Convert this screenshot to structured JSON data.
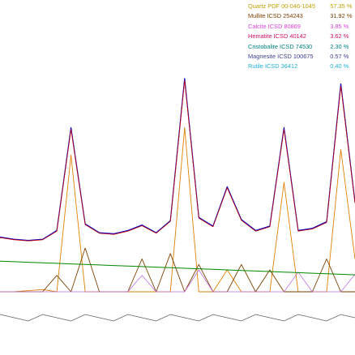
{
  "chart_data": {
    "type": "line",
    "title": "",
    "xlabel": "",
    "ylabel": "",
    "grid": false,
    "legend_placement": "top-right",
    "phases": [
      {
        "name": "Quartz PDF 00-046-1045",
        "percent": "57.35 %",
        "color": "#c0a000"
      },
      {
        "name": "Mullite ICSD 254243",
        "percent": "31.92 %",
        "color": "#7b3f00"
      },
      {
        "name": "Calcite ICSD 80869",
        "percent": "3.85 %",
        "color": "#e040e0"
      },
      {
        "name": "Hematite ICSD 40142",
        "percent": "3.62 %",
        "color": "#d01060"
      },
      {
        "name": "Cristobalite ICSD 74530",
        "percent": "2.30 %",
        "color": "#008080"
      },
      {
        "name": "Magnesite ICSD 100675",
        "percent": "0.57 %",
        "color": "#404090"
      },
      {
        "name": "Rutile ICSD 36412",
        "percent": "0.40 %",
        "color": "#20b0d0"
      }
    ],
    "colors": {
      "observed": "#0000cc",
      "calculated": "#cc0000",
      "background": "#008800",
      "difference": "#606060",
      "quartz": "#e08000",
      "mullite": "#7b3f00",
      "minor_phase": "#c070e0"
    },
    "x": [
      0,
      2,
      4,
      6,
      8,
      10,
      12,
      14,
      16,
      18,
      20,
      22,
      24,
      26,
      28,
      30,
      32,
      34,
      36,
      38,
      40,
      42,
      44,
      46,
      48,
      50
    ],
    "series": [
      {
        "values": [
          500,
          480,
          470,
          480,
          560,
          1500,
          620,
          540,
          530,
          560,
          610,
          540,
          650,
          1950,
          680,
          600,
          960,
          660,
          560,
          600,
          1500,
          560,
          580,
          640,
          1900,
          820
        ]
      },
      {
        "values": [
          280,
          275,
          270,
          265,
          260,
          255,
          250,
          245,
          240,
          235,
          230,
          225,
          220,
          215,
          210,
          205,
          200,
          195,
          190,
          185,
          180,
          175,
          170,
          165,
          160,
          155
        ]
      },
      {
        "values": [
          0,
          0,
          10,
          20,
          0,
          1250,
          0,
          0,
          0,
          0,
          0,
          0,
          0,
          1500,
          0,
          0,
          200,
          0,
          0,
          0,
          1000,
          0,
          0,
          0,
          1300,
          300
        ]
      },
      {
        "values": [
          0,
          0,
          0,
          0,
          150,
          0,
          400,
          0,
          0,
          0,
          300,
          0,
          350,
          0,
          250,
          0,
          0,
          250,
          0,
          200,
          0,
          0,
          0,
          300,
          0,
          0
        ]
      },
      {
        "values": [
          0,
          0,
          0,
          0,
          0,
          0,
          0,
          0,
          0,
          0,
          150,
          0,
          0,
          0,
          200,
          0,
          0,
          0,
          0,
          0,
          0,
          180,
          0,
          0,
          0,
          160
        ]
      }
    ]
  }
}
